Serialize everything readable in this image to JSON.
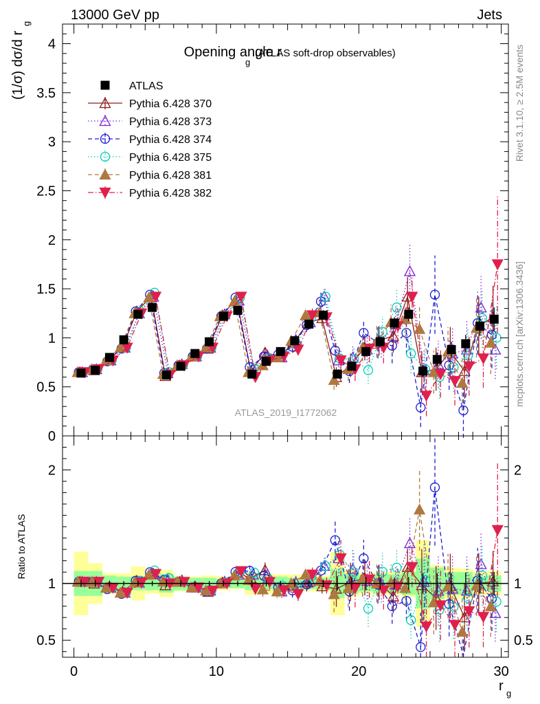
{
  "header": {
    "energy_label": "13000 GeV pp",
    "process_label": "Jets",
    "side_label_rivet": "Rivet 3.1.10, ≥ 2.5M events",
    "side_label_mcplots": "mcplots.cern.ch [arXiv:1306.3436]",
    "watermark": "ATLAS_2019_I1772062"
  },
  "chart_data": [
    {
      "type": "scatter",
      "panel": "main",
      "title": "Opening angle r",
      "title_sub": "g",
      "title_suffix": "(ATLAS soft-drop observables)",
      "ylabel_main": "(1/σ) dσ/d r",
      "ylabel_sub": "g",
      "xlim": [
        -0.8,
        30.5
      ],
      "ylim": [
        0,
        4.2
      ],
      "x_ticks": [
        0,
        10,
        20,
        30
      ],
      "y_ticks": [
        0,
        0.5,
        1,
        1.5,
        2,
        2.5,
        3,
        3.5,
        4
      ],
      "y_tick_labels": [
        "0",
        "0.5",
        "1",
        "1.5",
        "2",
        "2.5",
        "3",
        "3.5",
        "4"
      ],
      "x": [
        0.5,
        1.5,
        2.5,
        3.5,
        4.5,
        5.5,
        6.5,
        7.5,
        8.5,
        9.5,
        10.5,
        11.5,
        12.5,
        13.5,
        14.5,
        15.5,
        16.5,
        17.5,
        18.5,
        19.5,
        20.5,
        21.5,
        22.5,
        23.5,
        24.5,
        25.5,
        26.5,
        27.5,
        28.5,
        29.5
      ],
      "legend_position": "top-left",
      "series": [
        {
          "name": "ATLAS",
          "color": "#000000",
          "marker": "square-filled",
          "line": "none",
          "values": [
            0.64,
            0.67,
            0.8,
            0.98,
            1.24,
            1.31,
            0.62,
            0.71,
            0.84,
            0.96,
            1.22,
            1.28,
            0.63,
            0.76,
            0.86,
            0.97,
            1.14,
            1.23,
            0.63,
            0.71,
            0.86,
            0.96,
            1.15,
            1.24,
            0.66,
            0.78,
            0.88,
            0.94,
            1.12,
            1.19
          ],
          "errors": [
            0.02,
            0.02,
            0.02,
            0.02,
            0.03,
            0.03,
            0.02,
            0.02,
            0.02,
            0.02,
            0.03,
            0.03,
            0.02,
            0.02,
            0.02,
            0.03,
            0.03,
            0.04,
            0.04,
            0.04,
            0.05,
            0.05,
            0.06,
            0.07,
            0.06,
            0.07,
            0.08,
            0.09,
            0.1,
            0.12
          ]
        },
        {
          "name": "Pythia 6.428 370",
          "color": "#8b1a1a",
          "marker": "triangle-up-open",
          "line": "solid",
          "values": [
            0.65,
            0.67,
            0.77,
            0.91,
            1.27,
            1.42,
            0.61,
            0.72,
            0.81,
            0.89,
            1.23,
            1.4,
            0.66,
            0.85,
            0.81,
            0.95,
            1.15,
            1.2,
            0.6,
            0.72,
            0.9,
            0.97,
            1.02,
            1.42,
            0.65,
            0.68,
            0.86,
            0.66,
            1.12,
            1.21
          ],
          "errors": [
            0.02,
            0.02,
            0.02,
            0.02,
            0.03,
            0.03,
            0.02,
            0.02,
            0.02,
            0.02,
            0.03,
            0.03,
            0.03,
            0.05,
            0.05,
            0.06,
            0.07,
            0.08,
            0.1,
            0.12,
            0.13,
            0.15,
            0.17,
            0.2,
            0.21,
            0.22,
            0.25,
            0.28,
            0.3,
            0.32
          ]
        },
        {
          "name": "Pythia 6.428 373",
          "color": "#7b1fd1",
          "marker": "triangle-up-open",
          "line": "dotted",
          "values": [
            0.65,
            0.68,
            0.77,
            0.9,
            1.25,
            1.42,
            0.64,
            0.73,
            0.81,
            0.9,
            1.24,
            1.38,
            0.68,
            0.82,
            0.8,
            0.98,
            1.16,
            1.42,
            0.77,
            0.8,
            0.88,
            0.96,
            1.14,
            1.68,
            0.67,
            0.73,
            0.84,
            0.88,
            1.31,
            0.88
          ],
          "errors": [
            0.02,
            0.02,
            0.02,
            0.02,
            0.03,
            0.03,
            0.02,
            0.02,
            0.02,
            0.02,
            0.03,
            0.03,
            0.03,
            0.05,
            0.05,
            0.06,
            0.07,
            0.09,
            0.1,
            0.12,
            0.14,
            0.16,
            0.18,
            0.28,
            0.22,
            0.24,
            0.26,
            0.29,
            0.32,
            0.3
          ]
        },
        {
          "name": "Pythia 6.428 374",
          "color": "#1a1ad4",
          "marker": "circle-open",
          "line": "dashed",
          "values": [
            0.65,
            0.68,
            0.76,
            0.89,
            1.27,
            1.44,
            0.64,
            0.72,
            0.81,
            0.89,
            1.22,
            1.41,
            0.7,
            0.81,
            0.83,
            0.91,
            1.13,
            1.37,
            0.87,
            0.66,
            1.05,
            0.95,
            0.92,
            1.05,
            0.29,
            1.44,
            0.72,
            0.26,
            1.15,
            1.03
          ],
          "errors": [
            0.02,
            0.02,
            0.02,
            0.02,
            0.03,
            0.03,
            0.02,
            0.02,
            0.02,
            0.02,
            0.03,
            0.03,
            0.03,
            0.05,
            0.05,
            0.06,
            0.07,
            0.09,
            0.11,
            0.12,
            0.14,
            0.16,
            0.18,
            0.22,
            0.2,
            0.4,
            0.25,
            0.28,
            0.32,
            0.34
          ]
        },
        {
          "name": "Pythia 6.428 375",
          "color": "#00cdb4",
          "marker": "circle-open",
          "line": "dotted",
          "values": [
            0.65,
            0.68,
            0.77,
            0.9,
            1.27,
            1.46,
            0.65,
            0.72,
            0.81,
            0.9,
            1.23,
            1.41,
            0.69,
            0.79,
            0.84,
            0.93,
            1.21,
            1.42,
            0.79,
            0.78,
            0.67,
            1.06,
            1.31,
            0.84,
            0.68,
            0.6,
            0.7,
            0.82,
            1.2,
            1.0
          ],
          "errors": [
            0.02,
            0.02,
            0.02,
            0.02,
            0.03,
            0.03,
            0.02,
            0.02,
            0.02,
            0.02,
            0.03,
            0.03,
            0.03,
            0.05,
            0.05,
            0.06,
            0.07,
            0.09,
            0.1,
            0.12,
            0.14,
            0.16,
            0.18,
            0.2,
            0.21,
            0.22,
            0.25,
            0.28,
            0.3,
            0.32
          ]
        },
        {
          "name": "Pythia 6.428 381",
          "color": "#b07840",
          "marker": "triangle-up-filled",
          "line": "dashed",
          "values": [
            0.65,
            0.68,
            0.77,
            0.9,
            1.25,
            1.41,
            0.63,
            0.72,
            0.81,
            0.9,
            1.22,
            1.37,
            0.65,
            0.72,
            0.8,
            0.97,
            1.23,
            1.26,
            0.57,
            0.68,
            0.9,
            0.96,
            1.16,
            1.19,
            1.09,
            0.65,
            0.86,
            0.54,
            1.1,
            0.95
          ],
          "errors": [
            0.02,
            0.02,
            0.02,
            0.02,
            0.03,
            0.03,
            0.02,
            0.02,
            0.02,
            0.02,
            0.03,
            0.03,
            0.03,
            0.05,
            0.05,
            0.06,
            0.07,
            0.09,
            0.1,
            0.12,
            0.14,
            0.16,
            0.18,
            0.2,
            0.24,
            0.22,
            0.25,
            0.28,
            0.3,
            0.32
          ]
        },
        {
          "name": "Pythia 6.428 382",
          "color": "#e0204c",
          "marker": "triangle-down-filled",
          "line": "dashdot",
          "values": [
            0.65,
            0.68,
            0.77,
            0.9,
            1.25,
            1.42,
            0.62,
            0.72,
            0.81,
            0.9,
            1.22,
            1.42,
            0.6,
            0.77,
            0.81,
            0.88,
            1.23,
            1.21,
            0.77,
            0.68,
            0.89,
            0.9,
            1.12,
            1.42,
            0.41,
            0.63,
            0.56,
            0.71,
            0.79,
            1.75
          ],
          "errors": [
            0.02,
            0.02,
            0.02,
            0.02,
            0.03,
            0.03,
            0.02,
            0.02,
            0.02,
            0.02,
            0.03,
            0.03,
            0.03,
            0.05,
            0.05,
            0.06,
            0.07,
            0.09,
            0.1,
            0.12,
            0.14,
            0.16,
            0.18,
            0.22,
            0.21,
            0.24,
            0.25,
            0.3,
            0.3,
            0.7
          ]
        }
      ]
    },
    {
      "type": "scatter",
      "panel": "ratio",
      "xlabel": "r",
      "xlabel_sub": "g",
      "ylabel": "Ratio to ATLAS",
      "xlim": [
        -0.8,
        30.5
      ],
      "ylim": [
        0.35,
        2.3
      ],
      "x_ticks": [
        0,
        10,
        20,
        30
      ],
      "x_tick_labels": [
        "0",
        "10",
        "20",
        "30"
      ],
      "y_ticks": [
        0.5,
        1,
        2
      ],
      "y_tick_labels": [
        "0.5",
        "1",
        "2"
      ],
      "reference_line": 1,
      "band_inner_halfwidth": [
        0.11,
        0.11,
        0.07,
        0.06,
        0.06,
        0.06,
        0.08,
        0.06,
        0.05,
        0.05,
        0.04,
        0.04,
        0.06,
        0.05,
        0.06,
        0.05,
        0.05,
        0.05,
        0.13,
        0.09,
        0.07,
        0.08,
        0.08,
        0.1,
        0.22,
        0.14,
        0.1,
        0.1,
        0.06,
        0.07
      ],
      "band_outer_halfwidth": [
        0.28,
        0.18,
        0.09,
        0.09,
        0.15,
        0.09,
        0.12,
        0.07,
        0.06,
        0.07,
        0.06,
        0.05,
        0.1,
        0.09,
        0.08,
        0.08,
        0.07,
        0.07,
        0.28,
        0.12,
        0.09,
        0.1,
        0.1,
        0.12,
        0.38,
        0.16,
        0.14,
        0.13,
        0.1,
        0.11
      ]
    }
  ]
}
